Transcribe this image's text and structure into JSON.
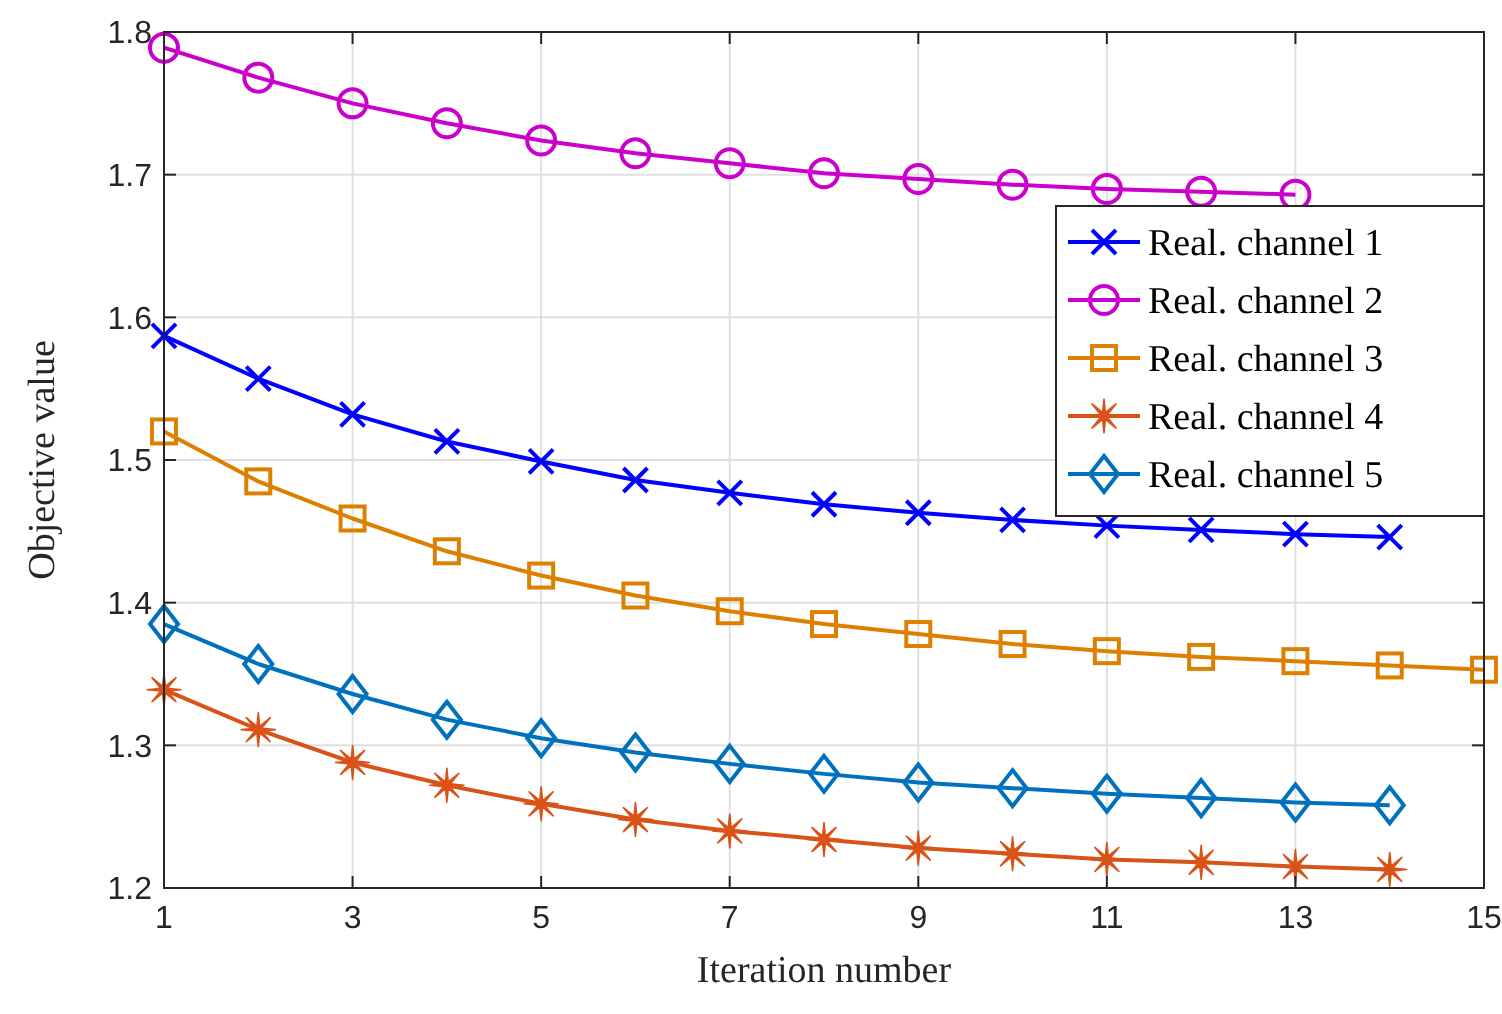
{
  "chart_data": {
    "type": "line",
    "xlabel": "Iteration number",
    "ylabel": "Objective value",
    "xlim": [
      1,
      15
    ],
    "xticks": [
      1,
      3,
      5,
      7,
      9,
      11,
      13,
      15
    ],
    "ylim": [
      1.2,
      1.8
    ],
    "yticks": [
      1.2,
      1.3,
      1.4,
      1.5,
      1.6,
      1.7,
      1.8
    ],
    "grid": true,
    "legend": "top right",
    "line_style": "solid",
    "series": [
      {
        "name": "Real. channel 1",
        "color": "#0000ff",
        "marker": "cross",
        "x": [
          1,
          2,
          3,
          4,
          5,
          6,
          7,
          8,
          9,
          10,
          11,
          12,
          13,
          14
        ],
        "values": [
          1.587,
          1.557,
          1.532,
          1.513,
          1.499,
          1.486,
          1.477,
          1.469,
          1.463,
          1.458,
          1.454,
          1.451,
          1.448,
          1.446
        ]
      },
      {
        "name": "Real. channel 2",
        "color": "#cc00cc",
        "marker": "circle",
        "x": [
          1,
          2,
          3,
          4,
          5,
          6,
          7,
          8,
          9,
          10,
          11,
          12,
          13
        ],
        "values": [
          1.789,
          1.768,
          1.75,
          1.736,
          1.724,
          1.715,
          1.708,
          1.701,
          1.697,
          1.693,
          1.69,
          1.688,
          1.686
        ]
      },
      {
        "name": "Real. channel 3",
        "color": "#dd8000",
        "marker": "square",
        "x": [
          1,
          2,
          3,
          4,
          5,
          6,
          7,
          8,
          9,
          10,
          11,
          12,
          13,
          14,
          15
        ],
        "values": [
          1.52,
          1.485,
          1.459,
          1.436,
          1.419,
          1.405,
          1.394,
          1.385,
          1.378,
          1.371,
          1.366,
          1.362,
          1.359,
          1.356,
          1.353
        ]
      },
      {
        "name": "Real. channel 4",
        "color": "#d95319",
        "marker": "star",
        "x": [
          1,
          2,
          3,
          4,
          5,
          6,
          7,
          8,
          9,
          10,
          11,
          12,
          13,
          14
        ],
        "values": [
          1.339,
          1.311,
          1.288,
          1.272,
          1.259,
          1.248,
          1.24,
          1.234,
          1.228,
          1.224,
          1.22,
          1.218,
          1.215,
          1.213
        ]
      },
      {
        "name": "Real. channel 5",
        "color": "#0072bd",
        "marker": "diamond",
        "x": [
          1,
          2,
          3,
          4,
          5,
          6,
          7,
          8,
          9,
          10,
          11,
          12,
          13,
          14
        ],
        "values": [
          1.385,
          1.357,
          1.336,
          1.318,
          1.305,
          1.295,
          1.287,
          1.28,
          1.274,
          1.27,
          1.266,
          1.263,
          1.26,
          1.258
        ]
      }
    ]
  }
}
